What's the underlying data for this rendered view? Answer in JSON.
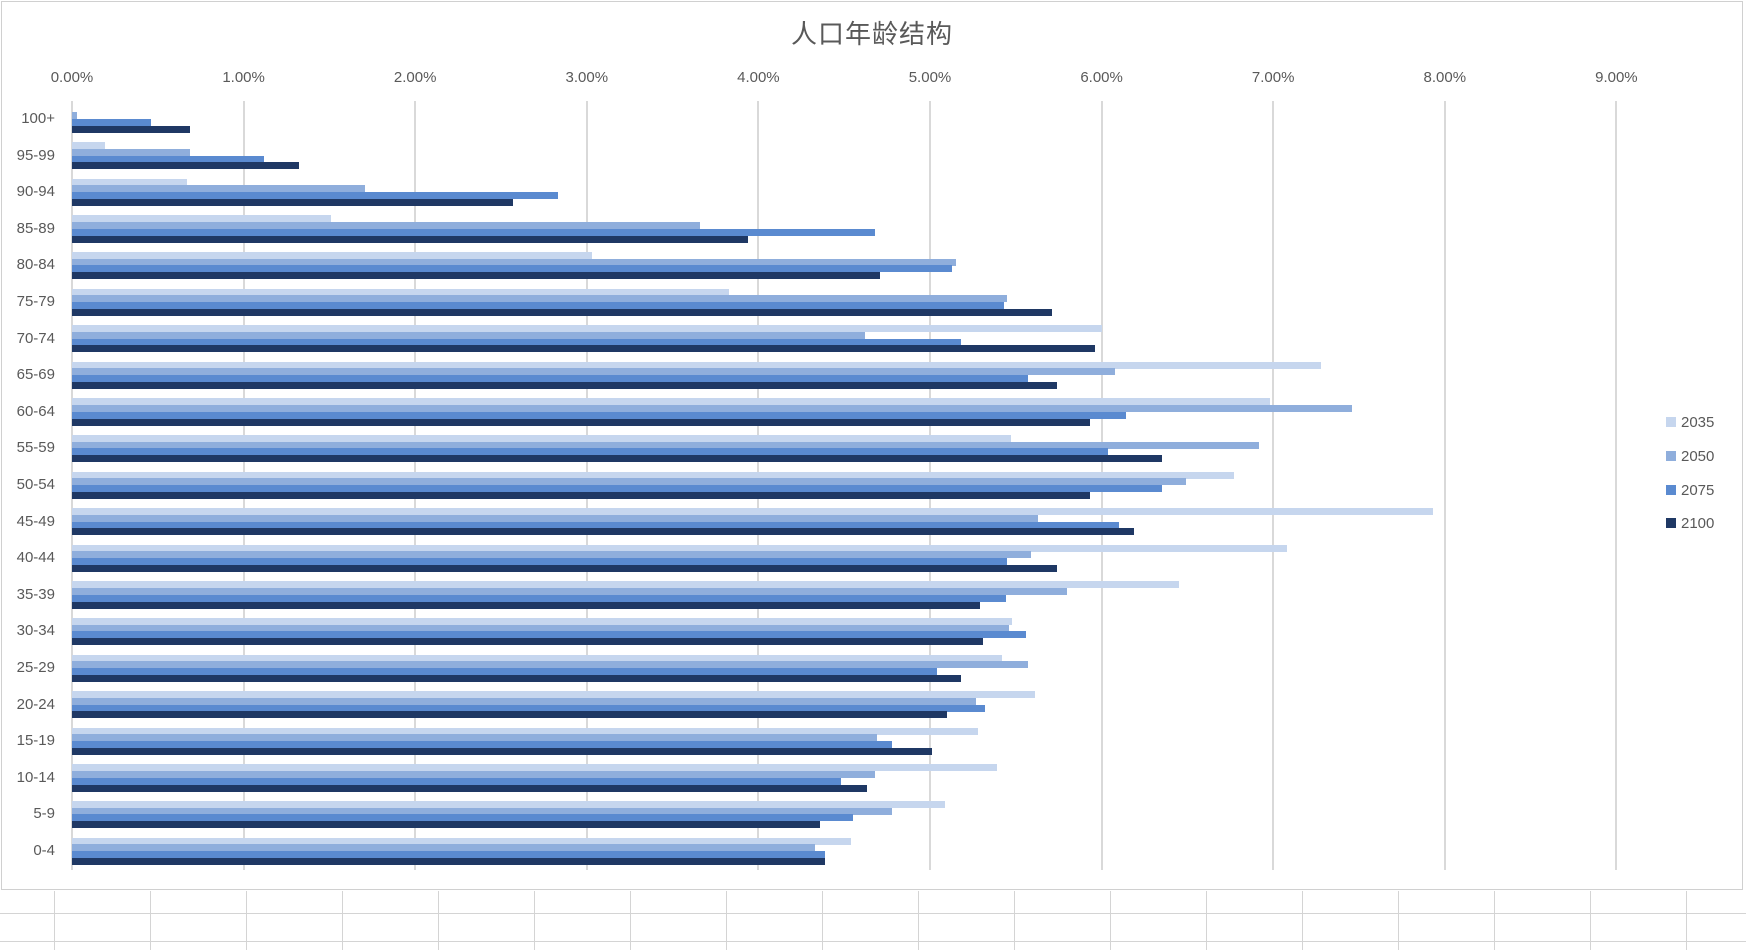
{
  "chart_data": {
    "type": "bar",
    "orientation": "horizontal",
    "title": "人口年龄结构",
    "xlabel": "",
    "ylabel": "",
    "xlim": [
      0,
      0.09
    ],
    "x_tick_labels": [
      "0.00%",
      "1.00%",
      "2.00%",
      "3.00%",
      "4.00%",
      "5.00%",
      "6.00%",
      "7.00%",
      "8.00%",
      "9.00%"
    ],
    "grid": true,
    "legend_position": "right",
    "categories": [
      "100+",
      "95-99",
      "90-94",
      "85-89",
      "80-84",
      "75-79",
      "70-74",
      "65-69",
      "60-64",
      "55-59",
      "50-54",
      "45-49",
      "40-44",
      "35-39",
      "30-34",
      "25-29",
      "20-24",
      "15-19",
      "10-14",
      "5-9",
      "0-4"
    ],
    "series": [
      {
        "name": "2035",
        "color": "#C6D6EE",
        "values": [
          0.0,
          0.0019,
          0.0067,
          0.0151,
          0.0303,
          0.0383,
          0.06,
          0.0728,
          0.0698,
          0.0547,
          0.0677,
          0.0793,
          0.0708,
          0.0645,
          0.0548,
          0.0542,
          0.0561,
          0.0528,
          0.0539,
          0.0509,
          0.0454
        ]
      },
      {
        "name": "2050",
        "color": "#8FAEDC",
        "values": [
          0.0003,
          0.0069,
          0.0171,
          0.0366,
          0.0515,
          0.0545,
          0.0462,
          0.0608,
          0.0746,
          0.0692,
          0.0649,
          0.0563,
          0.0559,
          0.058,
          0.0546,
          0.0557,
          0.0527,
          0.0469,
          0.0468,
          0.0478,
          0.0433
        ]
      },
      {
        "name": "2075",
        "color": "#5A8AD0",
        "values": [
          0.0046,
          0.0112,
          0.0283,
          0.0468,
          0.0513,
          0.0543,
          0.0518,
          0.0557,
          0.0614,
          0.0604,
          0.0635,
          0.061,
          0.0545,
          0.0544,
          0.0556,
          0.0504,
          0.0532,
          0.0478,
          0.0448,
          0.0455,
          0.0439
        ]
      },
      {
        "name": "2100",
        "color": "#1F3864",
        "values": [
          0.0069,
          0.0132,
          0.0257,
          0.0394,
          0.0471,
          0.0571,
          0.0596,
          0.0574,
          0.0593,
          0.0635,
          0.0593,
          0.0619,
          0.0574,
          0.0529,
          0.0531,
          0.0518,
          0.051,
          0.0501,
          0.0463,
          0.0436,
          0.0439
        ]
      }
    ]
  },
  "chart": {
    "title": "人口年龄结构",
    "legend": [
      "2035",
      "2050",
      "2075",
      "2100"
    ]
  }
}
